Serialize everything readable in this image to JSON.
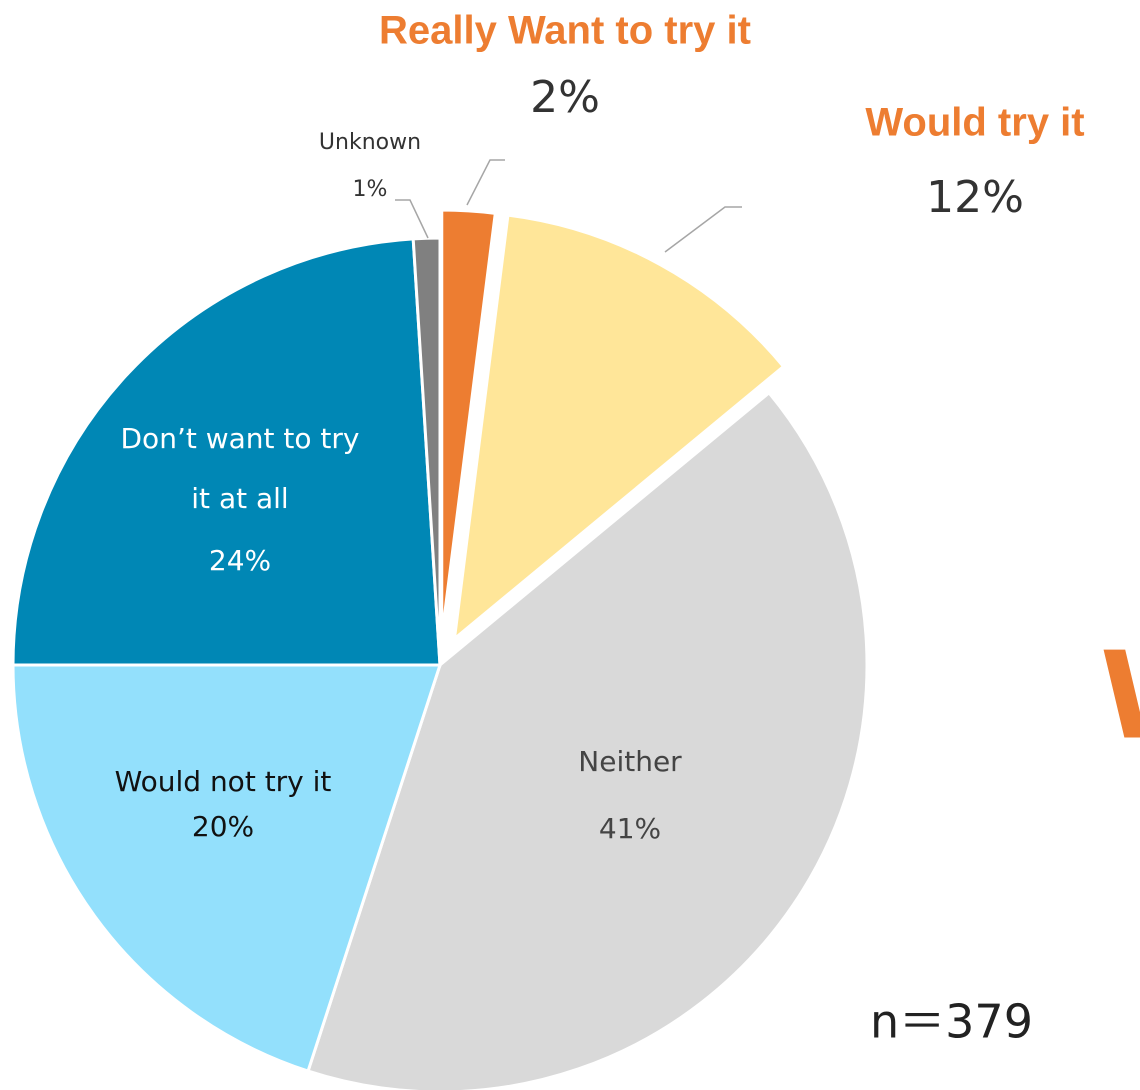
{
  "chart_data": {
    "type": "pie",
    "categories": [
      "Really Want to try it",
      "Would try it",
      "Neither",
      "Would not try it",
      "Don’t want to try it at all",
      "Unknown"
    ],
    "values": [
      2,
      12,
      41,
      20,
      24,
      1
    ],
    "value_labels": [
      "2%",
      "12%",
      "41%",
      "20%",
      "24%",
      "1%"
    ],
    "colors": [
      "#ed7d31",
      "#ffe699",
      "#d9d9d9",
      "#93e0fc",
      "#0087b5",
      "#808080"
    ],
    "annotations": [
      "n＝379",
      "W"
    ]
  }
}
